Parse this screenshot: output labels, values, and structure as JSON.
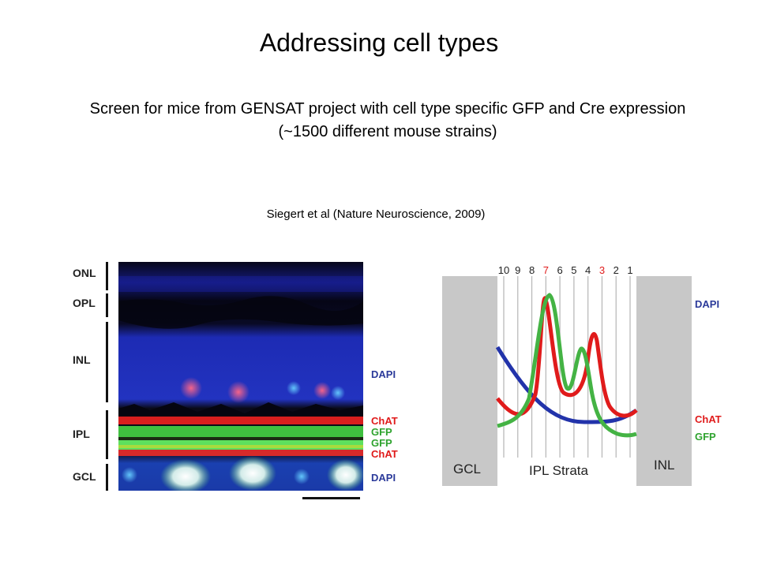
{
  "slide": {
    "title": "Addressing cell types",
    "subtitle_line1": "Screen for mice from GENSAT project with cell type specific GFP and Cre expression",
    "subtitle_line2": "(~1500 different mouse strains)",
    "citation": "Siegert et al (Nature Neuroscience, 2009)"
  },
  "micrograph": {
    "layers": [
      "ONL",
      "OPL",
      "INL",
      "IPL",
      "GCL"
    ],
    "stain_labels": [
      {
        "text": "DAPI",
        "color": "#2b3a9a"
      },
      {
        "text": "ChAT",
        "color": "#e01b1b"
      },
      {
        "text": "GFP",
        "color": "#2fa32f"
      },
      {
        "text": "GFP",
        "color": "#2fa32f"
      },
      {
        "text": "ChAT",
        "color": "#e01b1b"
      },
      {
        "text": "DAPI",
        "color": "#2b3a9a"
      }
    ]
  },
  "profile_plot": {
    "strata_numbers": [
      "10",
      "9",
      "8",
      "7",
      "6",
      "5",
      "4",
      "3",
      "2",
      "1"
    ],
    "highlight_strata": [
      "7",
      "3"
    ],
    "left_block_label": "GCL",
    "right_block_label": "INL",
    "axis_label": "IPL Strata",
    "legend": [
      {
        "text": "DAPI",
        "color": "#2b3a9a"
      },
      {
        "text": "ChAT",
        "color": "#e01b1b"
      },
      {
        "text": "GFP",
        "color": "#2fa32f"
      }
    ],
    "colors": {
      "dapi": "#2233aa",
      "chat": "#e01b1b",
      "gfp": "#44b344",
      "block": "#c8c8c8"
    }
  }
}
